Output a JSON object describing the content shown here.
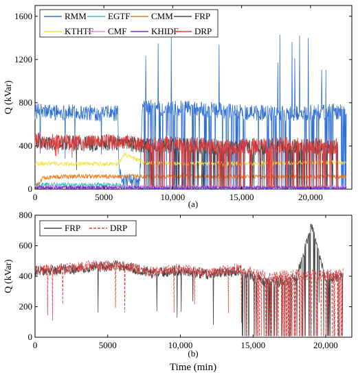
{
  "chart_data": [
    {
      "type": "line",
      "panel_label": "(a)",
      "ylabel": "Q (kVar)",
      "xlabel": "",
      "xlim": [
        0,
        23000
      ],
      "ylim": [
        0,
        1700
      ],
      "xticks": [
        0,
        5000,
        10000,
        15000,
        20000
      ],
      "xtick_labels": [
        "0",
        "5000",
        "10,000",
        "15,000",
        "20,000"
      ],
      "yticks": [
        0,
        400,
        800,
        1200,
        1600
      ],
      "ytick_labels": [
        "0",
        "400",
        "800",
        "1200",
        "1600"
      ],
      "legend": {
        "placement": "top-left",
        "columns": 4
      },
      "series": [
        {
          "name": "RMM",
          "color": "#2f6fd6",
          "x": [
            0,
            6000,
            6100,
            6500,
            7600,
            7800,
            12000,
            14000,
            18000,
            22000,
            22600
          ],
          "values": [
            720,
            700,
            150,
            80,
            50,
            760,
            740,
            720,
            700,
            720,
            720
          ]
        },
        {
          "name": "EGTF",
          "color": "#2ec4b6",
          "x": [
            0,
            3000,
            6000,
            6500,
            10000,
            15000,
            20000,
            22600
          ],
          "values": [
            45,
            40,
            40,
            12,
            12,
            10,
            10,
            10
          ]
        },
        {
          "name": "CMM",
          "color": "#ee7a1a",
          "x": [
            0,
            600,
            3000,
            6000,
            8000,
            12000,
            16000,
            20000,
            22600
          ],
          "values": [
            0,
            110,
            120,
            115,
            120,
            118,
            115,
            115,
            118
          ]
        },
        {
          "name": "FRP",
          "color": "#444444",
          "x": [
            0,
            3000,
            6000,
            8000,
            12000,
            14000,
            18000,
            22000
          ],
          "values": [
            440,
            420,
            430,
            410,
            400,
            380,
            400,
            390
          ]
        },
        {
          "name": "KTHTF",
          "color": "#f2e34b",
          "x": [
            0,
            3000,
            6000,
            6500,
            8000,
            14000,
            20000,
            22600
          ],
          "values": [
            240,
            235,
            235,
            320,
            240,
            235,
            245,
            245
          ]
        },
        {
          "name": "CMF",
          "color": "#e48ad8",
          "x": [
            0,
            5000,
            10000,
            15000,
            20000,
            22600
          ],
          "values": [
            20,
            20,
            18,
            18,
            18,
            18
          ]
        },
        {
          "name": "KHIDF",
          "color": "#6a2fc7",
          "x": [
            0,
            5000,
            10000,
            15000,
            20000,
            22600
          ],
          "values": [
            12,
            12,
            10,
            10,
            10,
            10
          ]
        },
        {
          "name": "DRP",
          "color": "#e53a3a",
          "x": [
            0,
            3000,
            6000,
            8000,
            12000,
            14000,
            18000,
            22000
          ],
          "values": [
            450,
            430,
            440,
            420,
            410,
            390,
            410,
            400
          ]
        }
      ]
    },
    {
      "type": "line",
      "panel_label": "(b)",
      "ylabel": "Q (kVar)",
      "xlabel": "Time (min)",
      "xlim": [
        0,
        21800
      ],
      "ylim": [
        0,
        800
      ],
      "xticks": [
        0,
        5000,
        10000,
        15000,
        20000
      ],
      "xtick_labels": [
        "0",
        "5000",
        "10,000",
        "15,000",
        "20,000"
      ],
      "yticks": [
        0,
        200,
        400,
        600,
        800
      ],
      "ytick_labels": [
        "0",
        "200",
        "400",
        "600",
        "800"
      ],
      "legend": {
        "placement": "top-left",
        "columns": 2
      },
      "series": [
        {
          "name": "FRP",
          "color": "#444444",
          "x": [
            0,
            2000,
            4000,
            6000,
            8000,
            10000,
            12000,
            14000,
            16000,
            18000,
            19000,
            20000,
            21200
          ],
          "values": [
            430,
            440,
            460,
            470,
            420,
            440,
            410,
            440,
            360,
            380,
            740,
            380,
            400
          ]
        },
        {
          "name": "DRP",
          "color": "#e53a3a",
          "x": [
            0,
            2000,
            4000,
            6000,
            8000,
            10000,
            12000,
            14000,
            16000,
            18000,
            20000,
            21200
          ],
          "values": [
            440,
            450,
            470,
            470,
            430,
            450,
            420,
            450,
            400,
            410,
            410,
            420
          ]
        }
      ]
    }
  ]
}
